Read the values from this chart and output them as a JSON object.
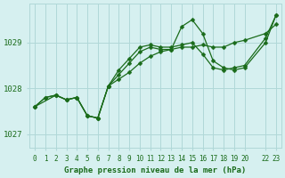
{
  "title": "Graphe pression niveau de la mer (hPa)",
  "bg_color": "#d6f0f0",
  "grid_color": "#b0d8d8",
  "line_color": "#1a6b1a",
  "text_color": "#1a6b1a",
  "xlim": [
    -0.5,
    23.5
  ],
  "ylim": [
    1026.7,
    1029.85
  ],
  "yticks": [
    1027,
    1028,
    1029
  ],
  "xtick_positions": [
    0,
    1,
    2,
    3,
    4,
    5,
    6,
    7,
    8,
    9,
    10,
    11,
    12,
    13,
    14,
    15,
    16,
    17,
    18,
    19,
    20,
    22,
    23
  ],
  "xtick_labels": [
    "0",
    "1",
    "2",
    "3",
    "4",
    "5",
    "6",
    "7",
    "8",
    "9",
    "10",
    "11",
    "12",
    "13",
    "14",
    "15",
    "16",
    "17",
    "18",
    "19",
    "20",
    "22",
    "23"
  ],
  "series1": {
    "x": [
      0,
      1,
      2,
      3,
      4,
      5,
      6,
      7,
      8,
      9,
      10,
      11,
      12,
      13,
      14,
      15,
      16,
      17,
      18,
      19,
      20,
      22,
      23
    ],
    "y": [
      1027.6,
      1027.8,
      1027.85,
      1027.75,
      1027.8,
      1027.4,
      1027.35,
      1028.05,
      1028.2,
      1028.35,
      1028.55,
      1028.7,
      1028.8,
      1028.85,
      1028.9,
      1028.9,
      1028.95,
      1028.9,
      1028.9,
      1029.0,
      1029.05,
      1029.2,
      1029.4
    ]
  },
  "series2": {
    "x": [
      0,
      1,
      2,
      3,
      4,
      5,
      6,
      7,
      8,
      9,
      10,
      11,
      12,
      13,
      14,
      15,
      16,
      17,
      18,
      19,
      20,
      22,
      23
    ],
    "y": [
      1027.6,
      1027.8,
      1027.85,
      1027.75,
      1027.8,
      1027.4,
      1027.35,
      1028.05,
      1028.3,
      1028.55,
      1028.8,
      1028.9,
      1028.85,
      1028.85,
      1029.35,
      1029.5,
      1029.2,
      1028.6,
      1028.45,
      1028.4,
      1028.45,
      1029.0,
      1029.6
    ]
  },
  "series3": {
    "x": [
      0,
      2,
      3,
      4,
      5,
      6,
      7,
      8,
      9,
      10,
      11,
      12,
      13,
      14,
      15,
      16,
      17,
      18,
      19,
      20,
      22,
      23
    ],
    "y": [
      1027.6,
      1027.85,
      1027.75,
      1027.8,
      1027.4,
      1027.35,
      1028.05,
      1028.4,
      1028.65,
      1028.9,
      1028.95,
      1028.9,
      1028.9,
      1028.95,
      1029.0,
      1028.75,
      1028.45,
      1028.4,
      1028.45,
      1028.5,
      1029.1,
      1029.6
    ]
  }
}
